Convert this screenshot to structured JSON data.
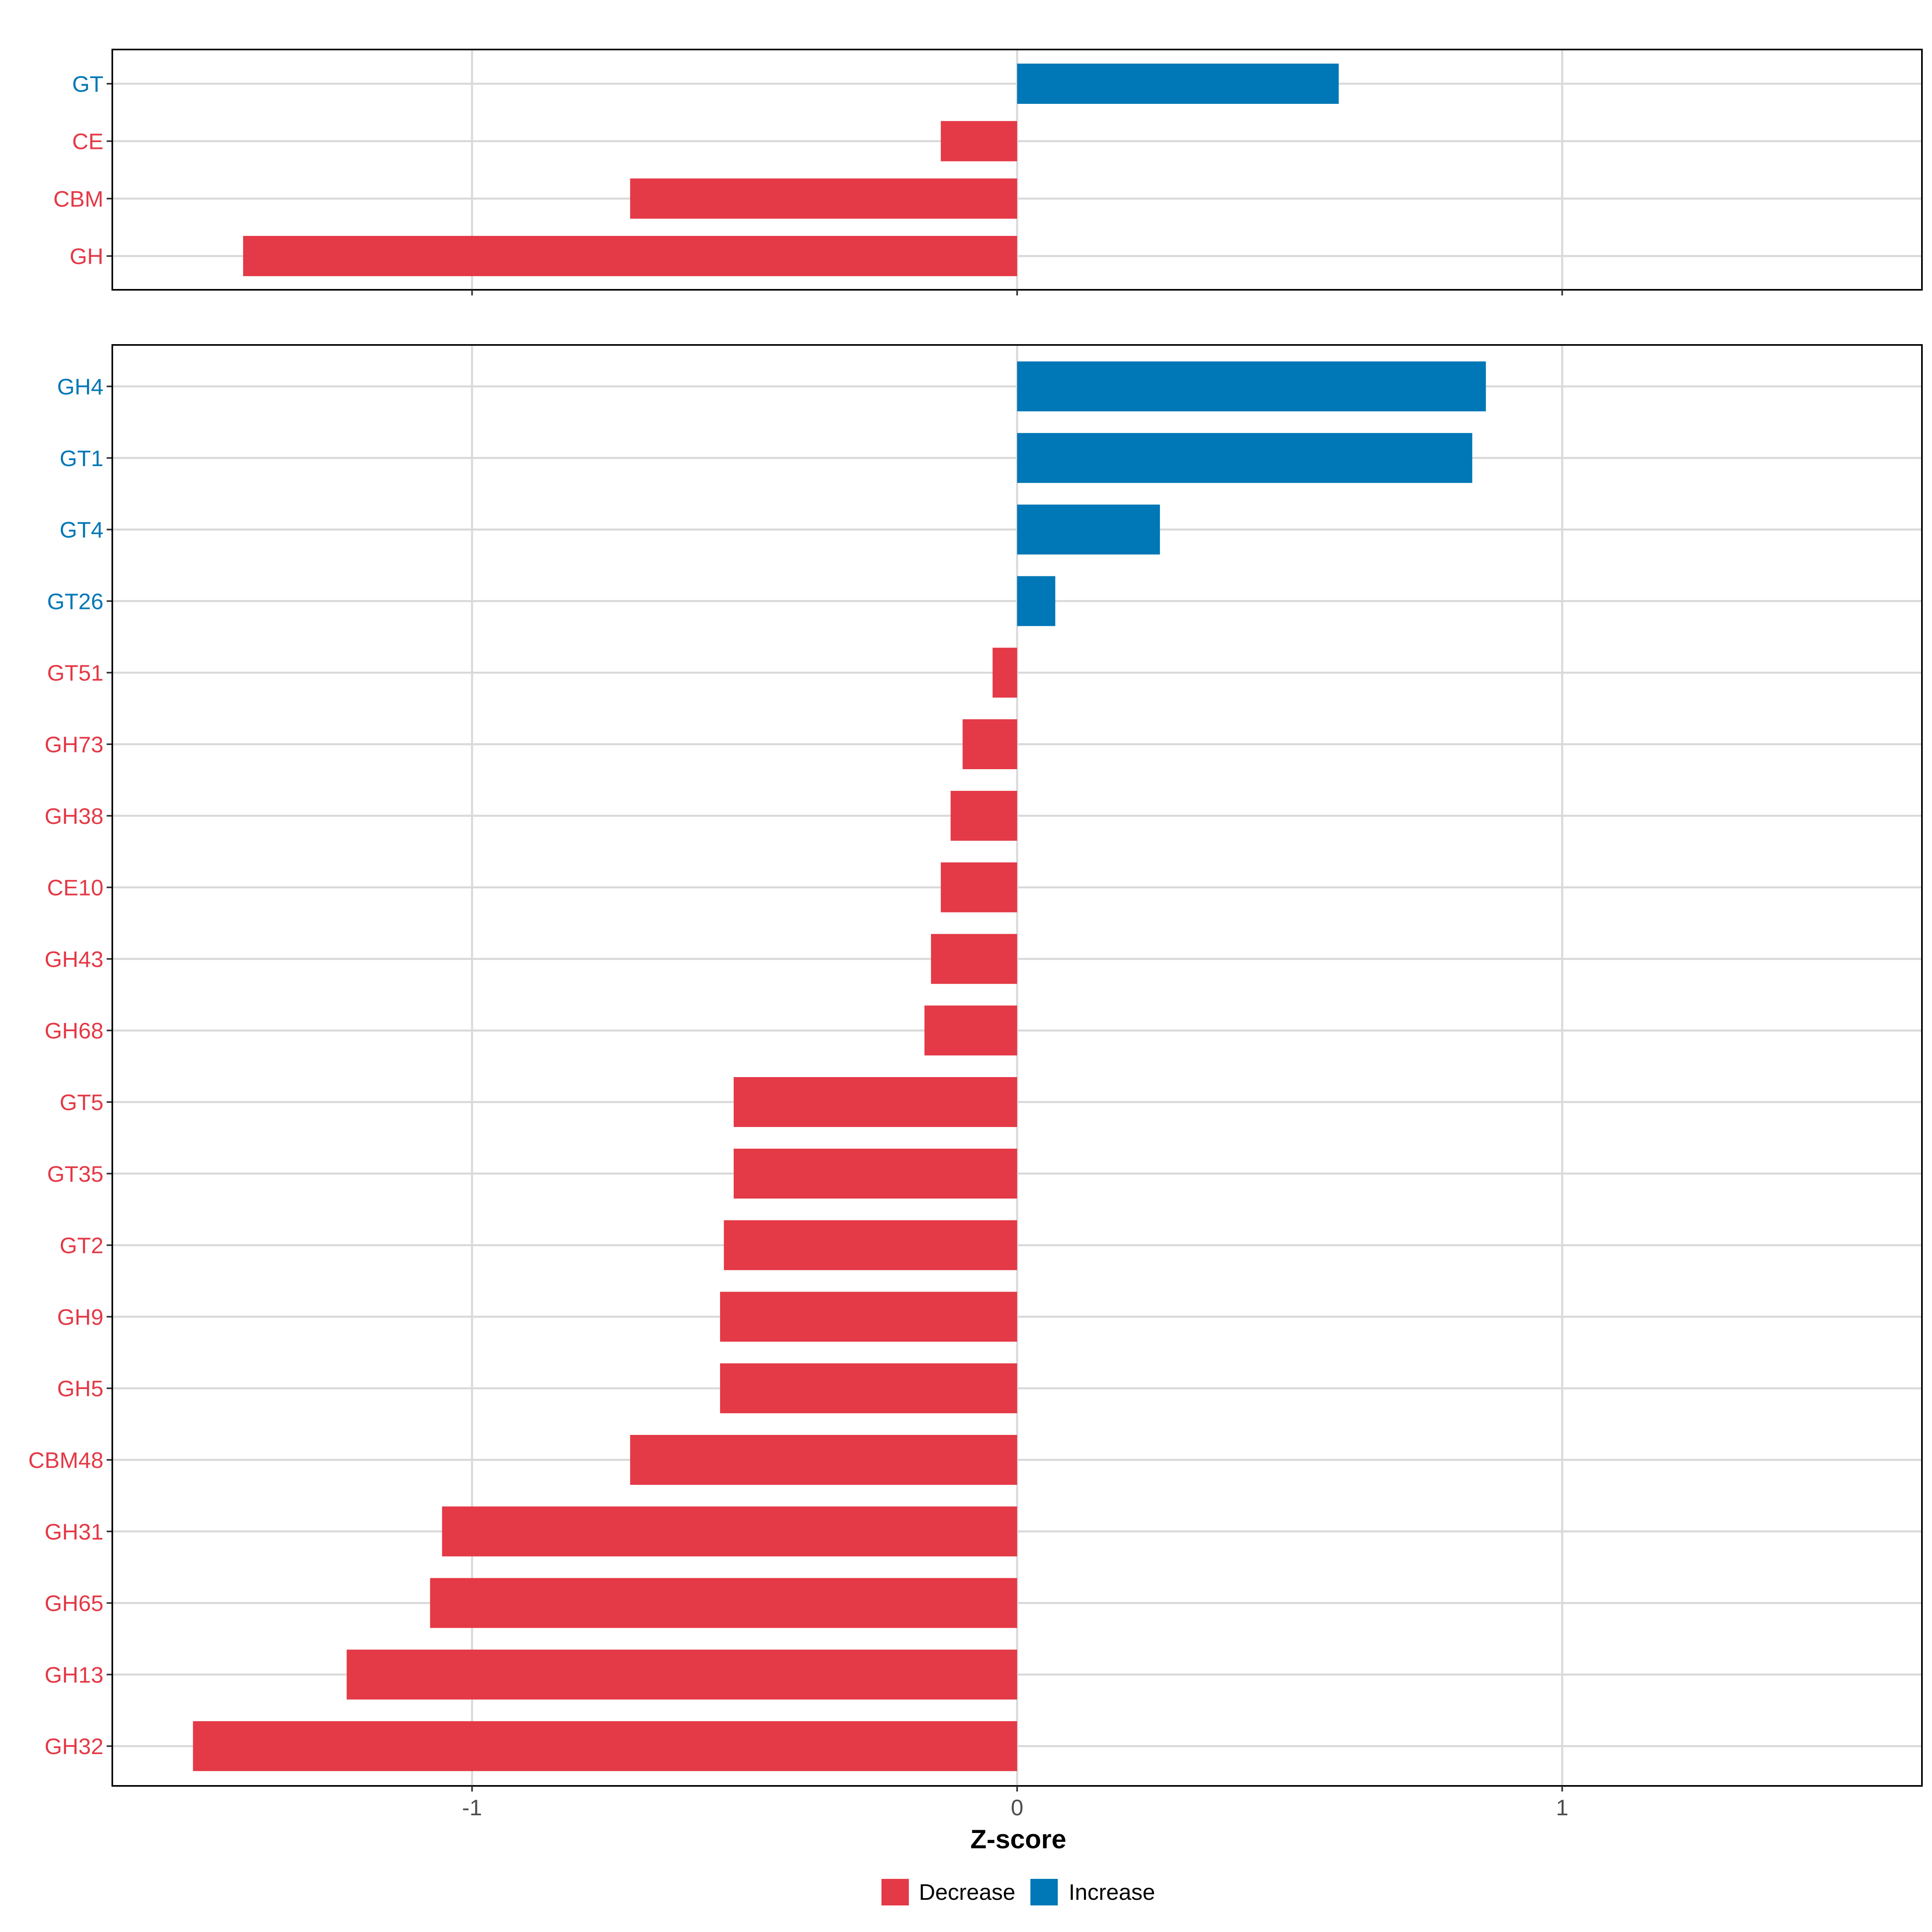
{
  "colors": {
    "decrease": "#E43946",
    "increase": "#0077B6",
    "grid": "#D9D9D9",
    "frame": "#000000"
  },
  "chart_data": {
    "type": "bar",
    "orientation": "horizontal",
    "xlabel": "Z-score",
    "xlim": [
      -1.66,
      1.66
    ],
    "xticks": [
      -1,
      0,
      1
    ],
    "xtick_labels": [
      "-1",
      "0",
      "1"
    ],
    "grid": true,
    "legend": {
      "position": "bottom",
      "entries": [
        {
          "label": "Decrease",
          "key": "decrease"
        },
        {
          "label": "Increase",
          "key": "increase"
        }
      ]
    },
    "panels": [
      {
        "name": "top",
        "categories": [
          "GT",
          "CE",
          "CBM",
          "GH"
        ],
        "values": [
          0.59,
          -0.14,
          -0.71,
          -1.42
        ]
      },
      {
        "name": "bottom",
        "categories": [
          "GH4",
          "GT1",
          "GT4",
          "GT26",
          "GT51",
          "GH73",
          "GH38",
          "CE10",
          "GH43",
          "GH68",
          "GT5",
          "GT35",
          "GT2",
          "GH9",
          "GH5",
          "CBM48",
          "GH31",
          "GH65",
          "GH13",
          "GH32"
        ],
        "values": [
          0.86,
          0.835,
          0.262,
          0.07,
          -0.045,
          -0.1,
          -0.122,
          -0.14,
          -0.158,
          -0.17,
          -0.52,
          -0.52,
          -0.538,
          -0.545,
          -0.545,
          -0.71,
          -1.055,
          -1.077,
          -1.23,
          -1.512
        ]
      }
    ]
  }
}
